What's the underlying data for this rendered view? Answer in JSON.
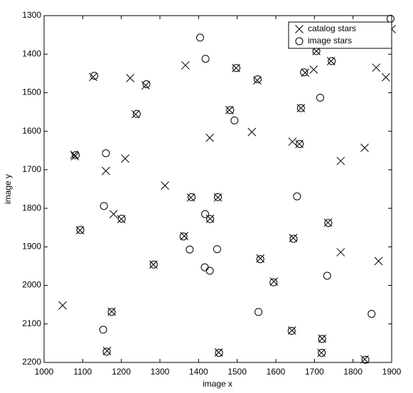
{
  "chart_data": {
    "type": "scatter",
    "x_label": "image x",
    "y_label": "image y",
    "xlim": [
      1000,
      1900
    ],
    "xticks": [
      1000,
      1100,
      1200,
      1300,
      1400,
      1500,
      1600,
      1700,
      1800,
      1900
    ],
    "ylim": [
      1300,
      2200
    ],
    "yticks": [
      1300,
      1400,
      1500,
      1600,
      1700,
      1800,
      1900,
      2000,
      2100,
      2200
    ],
    "y_direction": "reverse",
    "grid": false,
    "legend": "upper right",
    "series": [
      {
        "name": "catalog stars",
        "marker": "x",
        "color": "#000000",
        "x": [
          1900,
          1127,
          1223,
          1366,
          1263,
          1237,
          1497,
          1552,
          1480,
          1429,
          1538,
          1705,
          1676,
          1698,
          1743,
          1860,
          1885,
          1665,
          1643,
          1661,
          1768,
          1830,
          1078,
          1080,
          1160,
          1210,
          1313,
          1380,
          1450,
          1180,
          1200,
          1093,
          1363,
          1430,
          1645,
          1735,
          1768,
          1866,
          1560,
          1283,
          1595,
          1048,
          1175,
          1642,
          1163,
          1452,
          1720,
          1718,
          1830
        ],
        "y": [
          1335,
          1459,
          1462,
          1429,
          1481,
          1556,
          1436,
          1468,
          1545,
          1617,
          1602,
          1392,
          1448,
          1440,
          1418,
          1435,
          1460,
          1540,
          1627,
          1633,
          1677,
          1643,
          1661,
          1665,
          1703,
          1671,
          1741,
          1772,
          1772,
          1815,
          1828,
          1857,
          1872,
          1827,
          1877,
          1837,
          1914,
          1937,
          1930,
          1946,
          1990,
          2052,
          2068,
          2117,
          2170,
          2174,
          2138,
          2175,
          2192
        ]
      },
      {
        "name": "image stars",
        "marker": "o",
        "color": "#000000",
        "x": [
          1897,
          1404,
          1418,
          1130,
          1265,
          1240,
          1498,
          1553,
          1705,
          1673,
          1745,
          1715,
          1482,
          1493,
          1665,
          1662,
          1160,
          1082,
          1382,
          1450,
          1155,
          1417,
          1430,
          1201,
          1094,
          1655,
          1361,
          1377,
          1448,
          1416,
          1429,
          1646,
          1736,
          1560,
          1733,
          1284,
          1594,
          1555,
          1848,
          1175,
          1153,
          1641,
          1162,
          1453,
          1720,
          1719,
          1832
        ],
        "y": [
          1308,
          1357,
          1412,
          1456,
          1478,
          1555,
          1436,
          1465,
          1392,
          1447,
          1418,
          1513,
          1545,
          1572,
          1540,
          1633,
          1657,
          1662,
          1771,
          1771,
          1794,
          1815,
          1828,
          1827,
          1856,
          1769,
          1873,
          1907,
          1906,
          1953,
          1962,
          1879,
          1838,
          1932,
          1975,
          1946,
          1992,
          2069,
          2074,
          2069,
          2115,
          2118,
          2172,
          2175,
          2139,
          2175,
          2193
        ]
      }
    ]
  }
}
